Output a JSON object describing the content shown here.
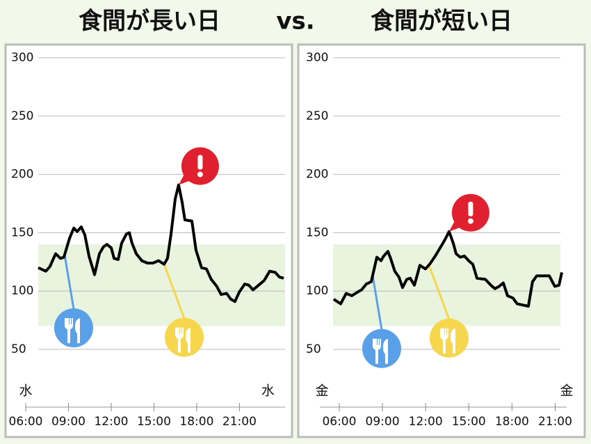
{
  "header": {
    "left": "食間が長い日",
    "vs": "vs.",
    "right": "食間が短い日"
  },
  "chart_data": [
    {
      "type": "line",
      "color": "#000000",
      "x": [
        6.88,
        7.41,
        7.7,
        8.1,
        8.44,
        8.68,
        9.07,
        9.37,
        9.61,
        9.9,
        10.15,
        10.44,
        10.83,
        11.17,
        11.46,
        11.7,
        12,
        12.2,
        12.49,
        12.73,
        13.07,
        13.27,
        13.46,
        13.76,
        14.15,
        14.54,
        14.93,
        15.32,
        15.71,
        15.95,
        16.2,
        16.49,
        16.73,
        16.98,
        17.17,
        17.66,
        17.95,
        18.34,
        18.68,
        19.02,
        19.41,
        19.71,
        20.1,
        20.39,
        20.68,
        20.98,
        21.37,
        21.66,
        21.95,
        22.34,
        22.73,
        23.12,
        23.51,
        23.8,
        24.1
      ],
      "values": [
        120,
        117,
        121,
        132,
        128,
        129,
        145,
        154,
        151,
        155,
        148,
        130,
        114,
        132,
        138,
        140,
        137,
        128,
        127,
        141,
        149,
        150,
        141,
        132,
        126,
        124,
        124,
        126,
        123,
        128,
        149,
        179,
        191,
        176,
        161,
        160,
        135,
        120,
        119,
        110,
        104,
        97,
        98,
        93,
        91,
        99,
        106,
        105,
        101,
        105,
        109,
        117,
        116,
        112,
        111
      ],
      "xlim": [
        6,
        24.2
      ],
      "xticks": [
        {
          "value": 6,
          "label": "06:00"
        },
        {
          "value": 9,
          "label": "09:00"
        },
        {
          "value": 12,
          "label": "12:00"
        },
        {
          "value": 15,
          "label": "15:00"
        },
        {
          "value": 18,
          "label": "18:00"
        },
        {
          "value": 21,
          "label": "21:00"
        }
      ],
      "ylim": [
        50,
        300
      ],
      "yticks": [
        50,
        100,
        150,
        200,
        250,
        300
      ],
      "grid": true,
      "target_range": [
        70,
        140
      ],
      "target_color": "#e9f4df",
      "day_labels": [
        {
          "text": "水",
          "x": 6
        },
        {
          "text": "水",
          "x": 23
        }
      ],
      "meals": [
        {
          "x": 8.73,
          "color": "#5aa0e8"
        },
        {
          "x": 15.71,
          "color": "#f6d64c"
        }
      ],
      "alert_x": 16.73,
      "alert_color": "#e0202e"
    },
    {
      "type": "line",
      "color": "#000000",
      "x": [
        5.61,
        6.1,
        6.48,
        6.87,
        7.26,
        7.55,
        7.88,
        8.22,
        8.61,
        8.9,
        9.09,
        9.38,
        9.57,
        9.86,
        10.15,
        10.4,
        10.69,
        10.93,
        11.22,
        11.6,
        11.99,
        12.28,
        12.67,
        12.96,
        13.34,
        13.63,
        13.92,
        14.12,
        14.41,
        14.7,
        14.99,
        15.28,
        15.57,
        16.15,
        16.53,
        16.82,
        17.11,
        17.4,
        17.69,
        18.07,
        18.36,
        18.75,
        19.14,
        19.43,
        19.72,
        20.11,
        20.59,
        20.98,
        21.27,
        21.46
      ],
      "values": [
        93,
        89,
        98,
        96,
        99,
        101,
        106,
        108,
        129,
        126,
        130,
        134,
        128,
        117,
        112,
        103,
        110,
        111,
        105,
        122,
        119,
        123,
        130,
        136,
        144,
        151,
        141,
        132,
        129,
        130,
        126,
        123,
        111,
        110,
        105,
        102,
        104,
        107,
        96,
        94,
        89,
        88,
        87,
        108,
        113,
        113,
        113,
        104,
        105,
        116
      ],
      "xlim": [
        4.65,
        21.8
      ],
      "xticks": [
        {
          "value": 6,
          "label": "06:00"
        },
        {
          "value": 9,
          "label": "09:00"
        },
        {
          "value": 12,
          "label": "12:00"
        },
        {
          "value": 15,
          "label": "15:00"
        },
        {
          "value": 18,
          "label": "18:00"
        },
        {
          "value": 21,
          "label": "21:00"
        }
      ],
      "ylim": [
        50,
        300
      ],
      "yticks": [
        50,
        100,
        150,
        200,
        250,
        300
      ],
      "grid": true,
      "target_range": [
        70,
        140
      ],
      "target_color": "#e9f4df",
      "day_labels": [
        {
          "text": "金",
          "x": 4.8
        },
        {
          "text": "金",
          "x": 21.8
        }
      ],
      "meals": [
        {
          "x": 8.32,
          "color": "#5aa0e8"
        },
        {
          "x": 12.23,
          "color": "#f6d64c"
        }
      ],
      "alert_x": 13.63,
      "alert_color": "#e0202e"
    }
  ]
}
